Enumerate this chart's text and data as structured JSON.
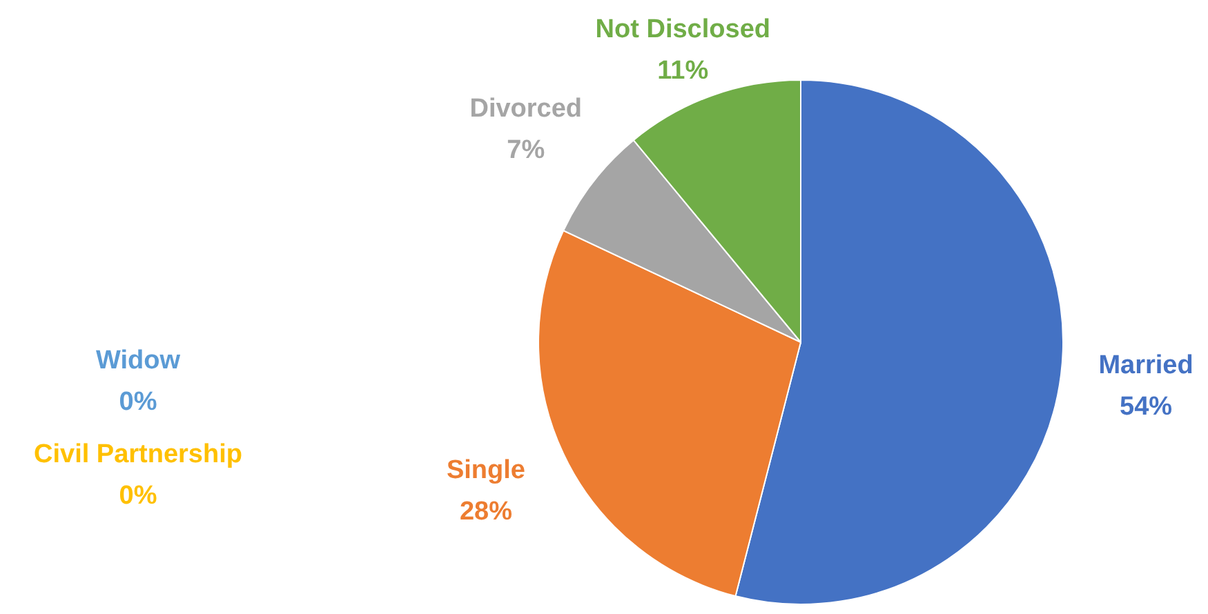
{
  "chart_data": {
    "type": "pie",
    "categories": [
      "Married",
      "Single",
      "Civil Partnership",
      "Widow",
      "Divorced",
      "Not Disclosed"
    ],
    "values": [
      54,
      28,
      0,
      0,
      7,
      11
    ],
    "colors": [
      "#4472c4",
      "#ed7d31",
      "#ffc000",
      "#5b9bd5",
      "#a5a5a5",
      "#70ad47"
    ],
    "value_labels": [
      "54%",
      "28%",
      "0%",
      "0%",
      "7%",
      "11%"
    ]
  }
}
